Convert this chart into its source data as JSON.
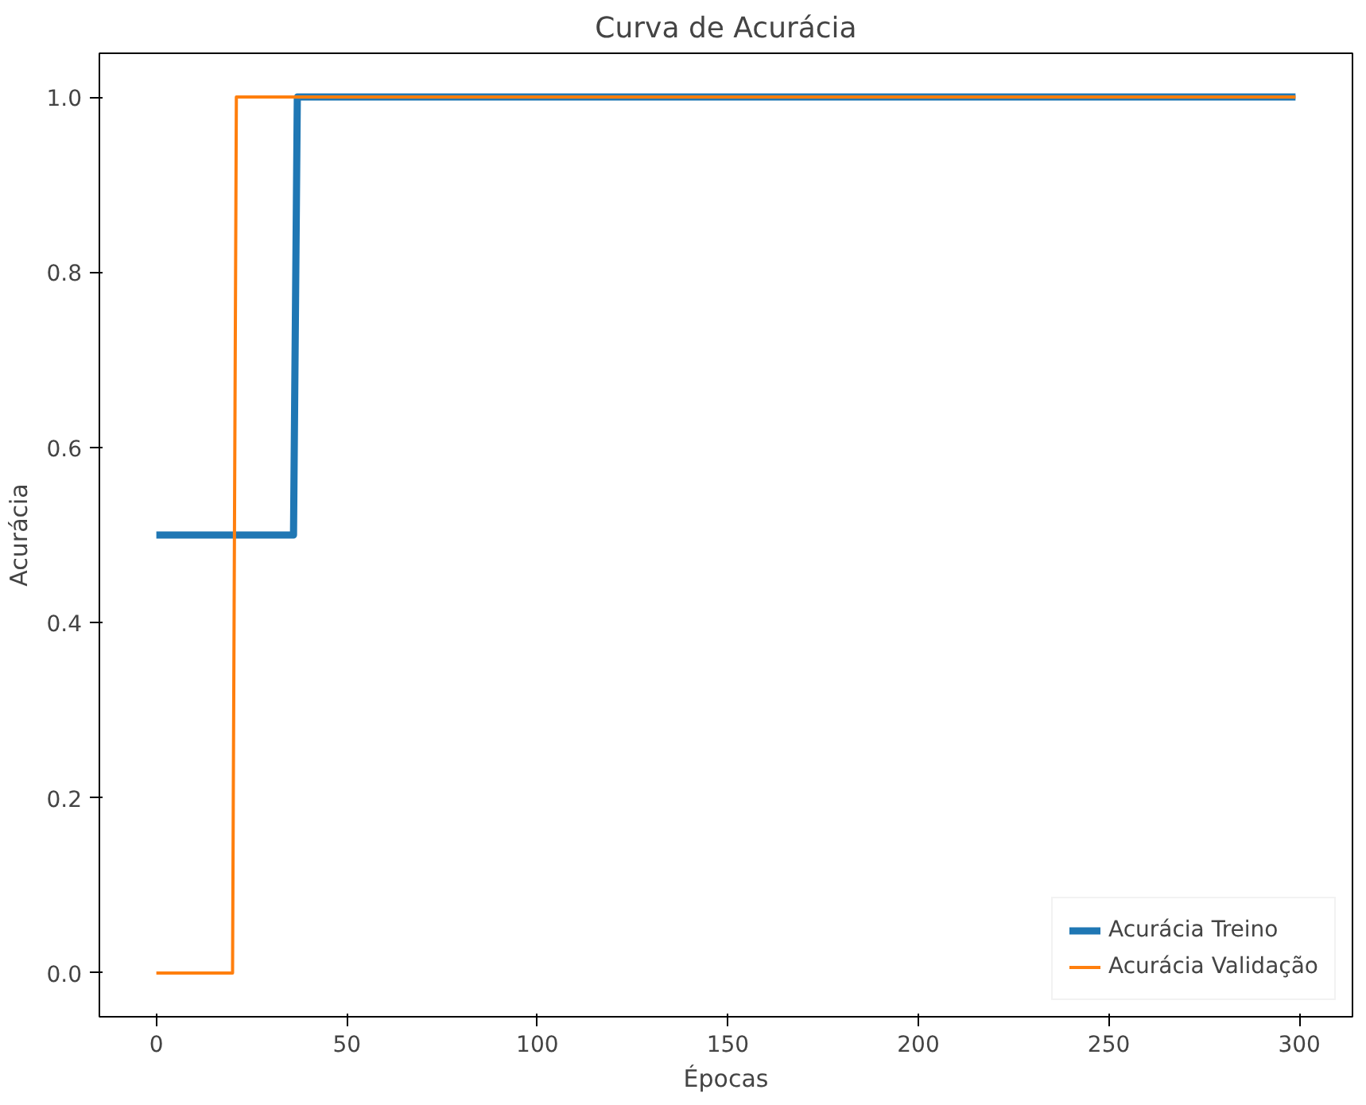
{
  "chart_data": {
    "type": "line",
    "title": "Curva de Acurácia",
    "xlabel": "Épocas",
    "ylabel": "Acurácia",
    "xlim": [
      -14.95,
      313.95
    ],
    "ylim": [
      -0.05,
      1.05
    ],
    "xticks": [
      0,
      50,
      100,
      150,
      200,
      250,
      300
    ],
    "yticks": [
      {
        "value": 0,
        "label": "0.0"
      },
      {
        "value": 0.2,
        "label": "0.2"
      },
      {
        "value": 0.4,
        "label": "0.4"
      },
      {
        "value": 0.6,
        "label": "0.6"
      },
      {
        "value": 0.8,
        "label": "0.8"
      },
      {
        "value": 1,
        "label": "1.0"
      }
    ],
    "series": [
      {
        "name": "Acurácia Treino",
        "color": "#1f77b4",
        "x": [
          0,
          36,
          37,
          299
        ],
        "values": [
          0.5,
          0.5,
          1,
          1
        ]
      },
      {
        "name": "Acurácia Validação",
        "color": "#ff7f0e",
        "x": [
          0,
          20,
          21,
          299
        ],
        "values": [
          0,
          0,
          1,
          1
        ]
      }
    ],
    "legend": "bottom right",
    "grid": false,
    "line_style": "solid"
  }
}
